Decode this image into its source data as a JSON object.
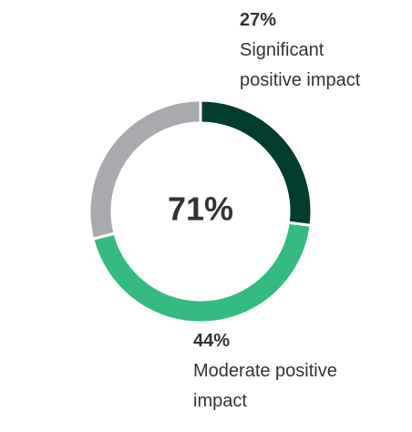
{
  "chart_data": {
    "type": "donut",
    "center_label": "71%",
    "categories": [
      "Significant positive impact",
      "Moderate positive impact",
      null
    ],
    "values": [
      27,
      44,
      29
    ],
    "value_labels": [
      "27%",
      "44%",
      null
    ],
    "colors": [
      "#033d30",
      "#35bb82",
      "#a8aaad"
    ]
  }
}
